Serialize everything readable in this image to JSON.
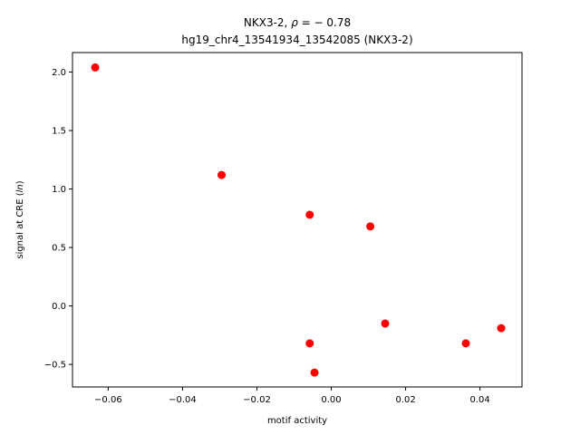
{
  "chart_data": {
    "type": "scatter",
    "title_line1_prefix": "NKX3-2, ",
    "title_line1_rho": "ρ",
    "title_line1_suffix": " = − 0.78",
    "title_line2": "hg19_chr4_13541934_13542085 (NKX3-2)",
    "xlabel": "motif activity",
    "ylabel_prefix": "signal at CRE (",
    "ylabel_italic": "ln",
    "ylabel_suffix": ")",
    "xlim": [
      -0.0696,
      0.0513
    ],
    "ylim": [
      -0.693,
      2.167
    ],
    "x_ticks": [
      {
        "value": -0.06,
        "label": "−0.06"
      },
      {
        "value": -0.04,
        "label": "−0.04"
      },
      {
        "value": -0.02,
        "label": "−0.02"
      },
      {
        "value": 0.0,
        "label": "0.00"
      },
      {
        "value": 0.02,
        "label": "0.02"
      },
      {
        "value": 0.04,
        "label": "0.04"
      }
    ],
    "y_ticks": [
      {
        "value": -0.5,
        "label": "−0.5"
      },
      {
        "value": 0.0,
        "label": "0.0"
      },
      {
        "value": 0.5,
        "label": "0.5"
      },
      {
        "value": 1.0,
        "label": "1.0"
      },
      {
        "value": 1.5,
        "label": "1.5"
      },
      {
        "value": 2.0,
        "label": "2.0"
      }
    ],
    "marker_color": "#ff0000",
    "grid": false,
    "points": [
      {
        "x": -0.0635,
        "y": 2.04
      },
      {
        "x": -0.0295,
        "y": 1.12
      },
      {
        "x": -0.0058,
        "y": 0.78
      },
      {
        "x": 0.0105,
        "y": 0.68
      },
      {
        "x": 0.0145,
        "y": -0.15
      },
      {
        "x": -0.0058,
        "y": -0.32
      },
      {
        "x": -0.0045,
        "y": -0.57
      },
      {
        "x": 0.0362,
        "y": -0.32
      },
      {
        "x": 0.0457,
        "y": -0.19
      }
    ]
  }
}
